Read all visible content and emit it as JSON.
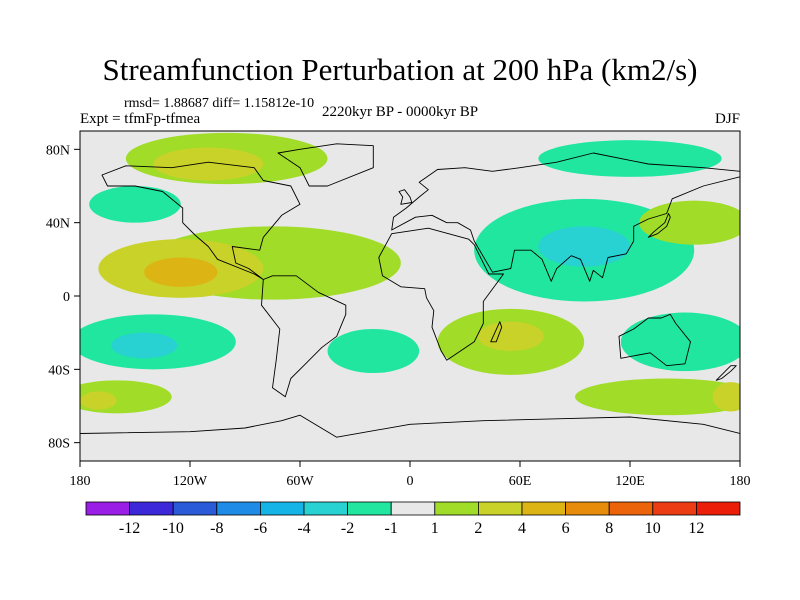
{
  "title": "Streamfunction Perturbation at 200 hPa (km2/s)",
  "stats": "rmsd= 1.88687 diff= 1.15812e-10",
  "experiment": "Expt = tfmFp-tfmea",
  "period": "2220kyr BP - 0000kyr BP",
  "season": "DJF",
  "map": {
    "lon_range": [
      -180,
      180
    ],
    "lat_range": [
      -90,
      90
    ],
    "lat_ticks": [
      {
        "value": 80,
        "label": "80N"
      },
      {
        "value": 40,
        "label": "40N"
      },
      {
        "value": 0,
        "label": "0"
      },
      {
        "value": -40,
        "label": "40S"
      },
      {
        "value": -80,
        "label": "80S"
      }
    ],
    "lon_ticks": [
      {
        "value": -180,
        "label": "180"
      },
      {
        "value": -120,
        "label": "120W"
      },
      {
        "value": -60,
        "label": "60W"
      },
      {
        "value": 0,
        "label": "0"
      },
      {
        "value": 60,
        "label": "60E"
      },
      {
        "value": 120,
        "label": "120E"
      },
      {
        "value": 180,
        "label": "180"
      }
    ],
    "background_color": "#e8e8e8"
  },
  "colorbar": {
    "colors": [
      "#9b1ee6",
      "#3c28d8",
      "#2a5ad8",
      "#1e8ce6",
      "#14b4e6",
      "#28d2d2",
      "#20e6a0",
      "#e8e8e8",
      "#a0dc28",
      "#c8d228",
      "#dcb414",
      "#e68c0a",
      "#eb640a",
      "#eb3c14",
      "#eb1e0a"
    ],
    "labels": [
      "-12",
      "-10",
      "-8",
      "-6",
      "-4",
      "-2",
      "-1",
      "1",
      "2",
      "4",
      "6",
      "8",
      "10",
      "12"
    ]
  },
  "fields": [
    {
      "name": "n-america-arctic",
      "lon": -100,
      "lat": 75,
      "rx": 55,
      "ry": 14,
      "level": 1
    },
    {
      "name": "n-america-arctic-core",
      "lon": -110,
      "lat": 72,
      "rx": 30,
      "ry": 9,
      "level": 2
    },
    {
      "name": "n-pacific-low",
      "lon": -150,
      "lat": 50,
      "rx": 25,
      "ry": 10,
      "level": -1
    },
    {
      "name": "tropical-atlantic-belt",
      "lon": -75,
      "lat": 18,
      "rx": 70,
      "ry": 20,
      "level": 1
    },
    {
      "name": "tropical-pacific-pos",
      "lon": -125,
      "lat": 15,
      "rx": 45,
      "ry": 16,
      "level": 2
    },
    {
      "name": "tropical-pacific-core",
      "lon": -125,
      "lat": 13,
      "rx": 20,
      "ry": 8,
      "level": 3
    },
    {
      "name": "s-pacific-neg",
      "lon": -140,
      "lat": -25,
      "rx": 45,
      "ry": 15,
      "level": -1
    },
    {
      "name": "s-pacific-neg-core",
      "lon": -145,
      "lat": -27,
      "rx": 18,
      "ry": 7,
      "level": -2
    },
    {
      "name": "s-atlantic-neg",
      "lon": -20,
      "lat": -30,
      "rx": 25,
      "ry": 12,
      "level": -1
    },
    {
      "name": "africa-pos",
      "lon": 55,
      "lat": -25,
      "rx": 40,
      "ry": 18,
      "level": 1
    },
    {
      "name": "africa-pos-core",
      "lon": 55,
      "lat": -22,
      "rx": 18,
      "ry": 8,
      "level": 2
    },
    {
      "name": "asia-neg",
      "lon": 95,
      "lat": 25,
      "rx": 60,
      "ry": 28,
      "level": -1
    },
    {
      "name": "asia-neg-core",
      "lon": 95,
      "lat": 27,
      "rx": 25,
      "ry": 11,
      "level": -2
    },
    {
      "name": "n-pacific-pos",
      "lon": 155,
      "lat": 40,
      "rx": 30,
      "ry": 12,
      "level": 1
    },
    {
      "name": "australia-neg",
      "lon": 150,
      "lat": -25,
      "rx": 35,
      "ry": 16,
      "level": -1
    },
    {
      "name": "arctic-asia-neg",
      "lon": 120,
      "lat": 75,
      "rx": 50,
      "ry": 10,
      "level": -1
    },
    {
      "name": "s-ocean-pos",
      "lon": 140,
      "lat": -55,
      "rx": 50,
      "ry": 10,
      "level": 1
    },
    {
      "name": "s-ocean-west-pos",
      "lon": -160,
      "lat": -55,
      "rx": 30,
      "ry": 9,
      "level": 1
    },
    {
      "name": "s-ocean-west-core",
      "lon": -170,
      "lat": -57,
      "rx": 10,
      "ry": 5,
      "level": 2
    },
    {
      "name": "dateline-east-pos",
      "lon": 175,
      "lat": -55,
      "rx": 10,
      "ry": 8,
      "level": 2
    }
  ],
  "continents": [
    {
      "name": "north-america",
      "points": [
        [
          -168,
          66
        ],
        [
          -155,
          71
        ],
        [
          -130,
          70
        ],
        [
          -110,
          73
        ],
        [
          -85,
          70
        ],
        [
          -80,
          63
        ],
        [
          -65,
          60
        ],
        [
          -60,
          50
        ],
        [
          -70,
          44
        ],
        [
          -80,
          32
        ],
        [
          -82,
          25
        ],
        [
          -97,
          27
        ],
        [
          -95,
          18
        ],
        [
          -88,
          15
        ],
        [
          -80,
          9
        ],
        [
          -85,
          12
        ],
        [
          -105,
          20
        ],
        [
          -110,
          27
        ],
        [
          -117,
          33
        ],
        [
          -124,
          40
        ],
        [
          -124,
          48
        ],
        [
          -135,
          57
        ],
        [
          -150,
          60
        ],
        [
          -165,
          60
        ]
      ]
    },
    {
      "name": "greenland",
      "points": [
        [
          -55,
          60
        ],
        [
          -45,
          60
        ],
        [
          -20,
          70
        ],
        [
          -20,
          82
        ],
        [
          -40,
          83
        ],
        [
          -60,
          80
        ],
        [
          -72,
          78
        ],
        [
          -60,
          70
        ]
      ]
    },
    {
      "name": "south-america",
      "points": [
        [
          -80,
          9
        ],
        [
          -75,
          11
        ],
        [
          -62,
          11
        ],
        [
          -50,
          2
        ],
        [
          -35,
          -5
        ],
        [
          -35,
          -10
        ],
        [
          -40,
          -22
        ],
        [
          -48,
          -28
        ],
        [
          -58,
          -38
        ],
        [
          -65,
          -45
        ],
        [
          -68,
          -55
        ],
        [
          -75,
          -50
        ],
        [
          -73,
          -35
        ],
        [
          -71,
          -18
        ],
        [
          -81,
          -5
        ]
      ]
    },
    {
      "name": "europe-asia",
      "points": [
        [
          -10,
          36
        ],
        [
          -9,
          43
        ],
        [
          -2,
          48
        ],
        [
          5,
          54
        ],
        [
          10,
          58
        ],
        [
          5,
          62
        ],
        [
          15,
          69
        ],
        [
          30,
          70
        ],
        [
          45,
          68
        ],
        [
          60,
          70
        ],
        [
          80,
          73
        ],
        [
          100,
          78
        ],
        [
          130,
          72
        ],
        [
          160,
          70
        ],
        [
          180,
          68
        ],
        [
          180,
          65
        ],
        [
          160,
          60
        ],
        [
          143,
          53
        ],
        [
          140,
          45
        ],
        [
          130,
          42
        ],
        [
          122,
          38
        ],
        [
          122,
          30
        ],
        [
          118,
          23
        ],
        [
          108,
          21
        ],
        [
          105,
          10
        ],
        [
          100,
          14
        ],
        [
          98,
          8
        ],
        [
          93,
          20
        ],
        [
          88,
          22
        ],
        [
          80,
          15
        ],
        [
          77,
          8
        ],
        [
          72,
          20
        ],
        [
          66,
          25
        ],
        [
          57,
          25
        ],
        [
          55,
          15
        ],
        [
          45,
          13
        ],
        [
          35,
          30
        ],
        [
          33,
          36
        ],
        [
          26,
          40
        ],
        [
          20,
          40
        ],
        [
          12,
          44
        ],
        [
          3,
          43
        ]
      ]
    },
    {
      "name": "africa",
      "points": [
        [
          -17,
          21
        ],
        [
          -10,
          34
        ],
        [
          10,
          37
        ],
        [
          32,
          31
        ],
        [
          35,
          28
        ],
        [
          43,
          12
        ],
        [
          51,
          12
        ],
        [
          40,
          -3
        ],
        [
          40,
          -15
        ],
        [
          35,
          -25
        ],
        [
          20,
          -35
        ],
        [
          17,
          -30
        ],
        [
          12,
          -17
        ],
        [
          13,
          -8
        ],
        [
          9,
          -1
        ],
        [
          8,
          4
        ],
        [
          -5,
          5
        ],
        [
          -15,
          11
        ]
      ]
    },
    {
      "name": "australia",
      "points": [
        [
          114,
          -22
        ],
        [
          122,
          -18
        ],
        [
          130,
          -12
        ],
        [
          137,
          -12
        ],
        [
          142,
          -10
        ],
        [
          145,
          -15
        ],
        [
          153,
          -25
        ],
        [
          150,
          -37
        ],
        [
          140,
          -38
        ],
        [
          131,
          -31
        ],
        [
          115,
          -34
        ]
      ]
    },
    {
      "name": "antarctica",
      "points": [
        [
          -180,
          -75
        ],
        [
          -120,
          -74
        ],
        [
          -90,
          -72
        ],
        [
          -70,
          -68
        ],
        [
          -60,
          -65
        ],
        [
          -40,
          -77
        ],
        [
          0,
          -70
        ],
        [
          40,
          -68
        ],
        [
          80,
          -67
        ],
        [
          120,
          -66
        ],
        [
          160,
          -70
        ],
        [
          180,
          -75
        ],
        [
          180,
          -90
        ],
        [
          -180,
          -90
        ]
      ]
    },
    {
      "name": "madagascar",
      "points": [
        [
          44,
          -25
        ],
        [
          49,
          -14
        ],
        [
          50,
          -17
        ],
        [
          47,
          -25
        ]
      ]
    },
    {
      "name": "japan",
      "points": [
        [
          130,
          32
        ],
        [
          135,
          34
        ],
        [
          140,
          38
        ],
        [
          142,
          43
        ],
        [
          141,
          45
        ],
        [
          139,
          40
        ],
        [
          133,
          35
        ]
      ]
    },
    {
      "name": "new-zealand",
      "points": [
        [
          167,
          -46
        ],
        [
          172,
          -41
        ],
        [
          175,
          -38
        ],
        [
          178,
          -38
        ],
        [
          175,
          -41
        ],
        [
          170,
          -45
        ]
      ]
    },
    {
      "name": "uk",
      "points": [
        [
          -5,
          50
        ],
        [
          1,
          51
        ],
        [
          0,
          54
        ],
        [
          -3,
          58
        ],
        [
          -6,
          57
        ],
        [
          -4,
          54
        ]
      ]
    }
  ]
}
